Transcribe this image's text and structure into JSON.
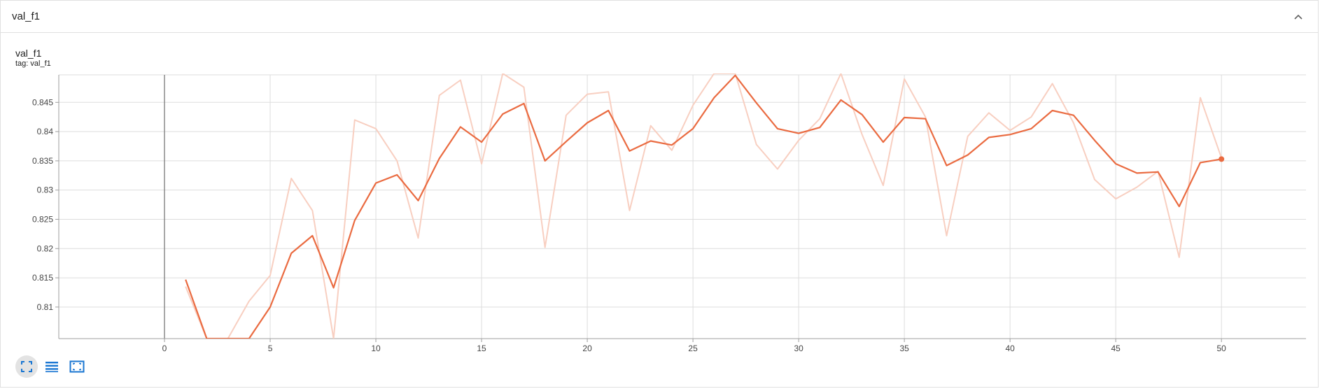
{
  "card": {
    "title": "val_f1"
  },
  "plot": {
    "title": "val_f1",
    "tag_label": "tag: val_f1"
  },
  "toolbar": {
    "buttons": [
      {
        "name": "fit-domain",
        "icon": "fullscreen-icon"
      },
      {
        "name": "toggle-log",
        "icon": "list-icon"
      },
      {
        "name": "data-selection",
        "icon": "select-icon"
      }
    ]
  },
  "colors": {
    "smoothed": "#ea6b41",
    "raw": "#f8cfc1",
    "grid": "#dddddd",
    "axis": "#9e9e9e"
  },
  "chart_data": {
    "type": "line",
    "title": "val_f1",
    "xlabel": "",
    "ylabel": "",
    "xlim": [
      -5,
      54
    ],
    "ylim": [
      0.8046,
      0.8497
    ],
    "x_ticks": [
      0,
      5,
      10,
      15,
      20,
      25,
      30,
      35,
      40,
      45,
      50
    ],
    "y_ticks": [
      0.81,
      0.815,
      0.82,
      0.825,
      0.83,
      0.835,
      0.84,
      0.845
    ],
    "y_tick_labels": [
      "0.81",
      "0.815",
      "0.82",
      "0.825",
      "0.83",
      "0.835",
      "0.84",
      "0.845"
    ],
    "grid": true,
    "series": [
      {
        "role": "raw",
        "x": [
          1,
          2,
          3,
          4,
          5,
          6,
          7,
          8,
          9,
          10,
          11,
          12,
          13,
          14,
          15,
          16,
          17,
          18,
          19,
          20,
          21,
          22,
          23,
          24,
          25,
          26,
          27,
          28,
          29,
          30,
          31,
          32,
          33,
          34,
          35,
          36,
          37,
          38,
          39,
          40,
          41,
          42,
          43,
          44,
          45,
          46,
          47,
          48,
          49,
          50
        ],
        "values": [
          0.8135,
          0.8,
          0.8,
          0.811,
          0.8154,
          0.832,
          0.8265,
          0.8,
          0.842,
          0.8405,
          0.835,
          0.8218,
          0.8462,
          0.8488,
          0.8345,
          0.8502,
          0.8476,
          0.8202,
          0.8428,
          0.8464,
          0.8468,
          0.8265,
          0.841,
          0.8368,
          0.8445,
          0.852,
          0.855,
          0.8378,
          0.8336,
          0.8385,
          0.8422,
          0.851,
          0.8395,
          0.8308,
          0.849,
          0.8425,
          0.8222,
          0.8392,
          0.8432,
          0.8402,
          0.8425,
          0.8482,
          0.8415,
          0.8318,
          0.8285,
          0.8305,
          0.8332,
          0.8185,
          0.8458,
          0.8355
        ]
      },
      {
        "role": "smoothed",
        "x": [
          1,
          2,
          3,
          4,
          5,
          6,
          7,
          8,
          9,
          10,
          11,
          12,
          13,
          14,
          15,
          16,
          17,
          18,
          19,
          20,
          21,
          22,
          23,
          24,
          25,
          26,
          27,
          28,
          29,
          30,
          31,
          32,
          33,
          34,
          35,
          36,
          37,
          38,
          39,
          40,
          41,
          42,
          43,
          44,
          45,
          46,
          47,
          48,
          49,
          50
        ],
        "values": [
          0.8147,
          0.8035,
          0.8035,
          0.8035,
          0.81,
          0.8192,
          0.8222,
          0.8133,
          0.8248,
          0.8312,
          0.8326,
          0.8282,
          0.8354,
          0.8408,
          0.8382,
          0.843,
          0.8448,
          0.835,
          0.8383,
          0.8415,
          0.8436,
          0.8367,
          0.8384,
          0.8377,
          0.8405,
          0.8458,
          0.8496,
          0.8449,
          0.8405,
          0.8397,
          0.8407,
          0.8454,
          0.8429,
          0.8382,
          0.8424,
          0.8422,
          0.8342,
          0.836,
          0.839,
          0.8395,
          0.8405,
          0.8436,
          0.8428,
          0.8385,
          0.8345,
          0.8329,
          0.8331,
          0.8272,
          0.8347,
          0.8353
        ]
      }
    ]
  }
}
